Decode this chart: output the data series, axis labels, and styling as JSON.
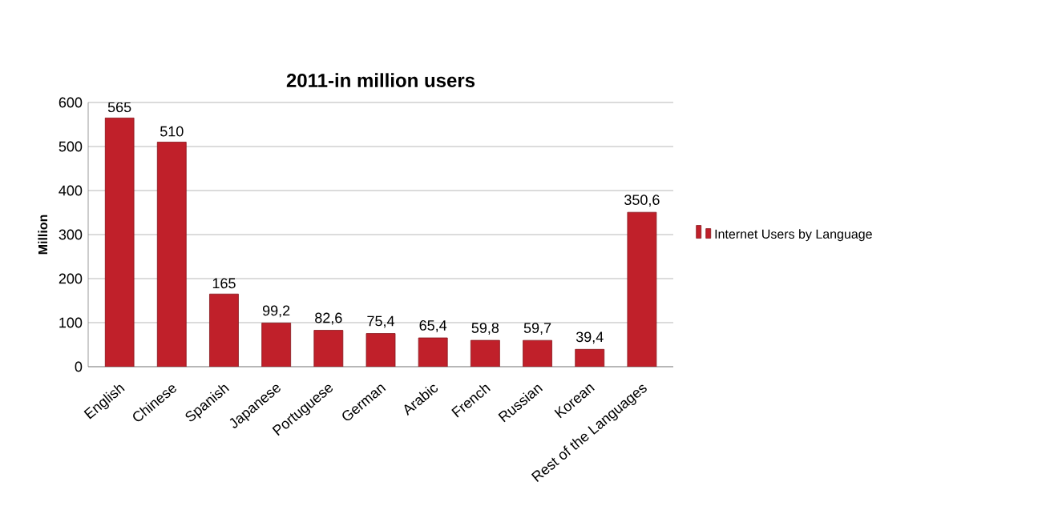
{
  "chart_data": {
    "type": "bar",
    "title": "2011-in million users",
    "ylabel": "Million",
    "categories": [
      "English",
      "Chinese",
      "Spanish",
      "Japanese",
      "Portuguese",
      "German",
      "Arabic",
      "French",
      "Russian",
      "Korean",
      "Rest of the Languages"
    ],
    "series": [
      {
        "name": "Internet Users by Language",
        "color": "#c0202a",
        "values": [
          565,
          510,
          165,
          99.2,
          82.6,
          75.4,
          65.4,
          59.8,
          59.7,
          39.4,
          350.6
        ],
        "value_labels": [
          "565",
          "510",
          "165",
          "99,2",
          "82,6",
          "75,4",
          "65,4",
          "59,8",
          "59,7",
          "39,4",
          "350,6"
        ]
      }
    ],
    "ylim": [
      0,
      600
    ],
    "yticks": [
      0,
      100,
      200,
      300,
      400,
      500,
      600
    ],
    "grid": "y",
    "legend": "right"
  }
}
